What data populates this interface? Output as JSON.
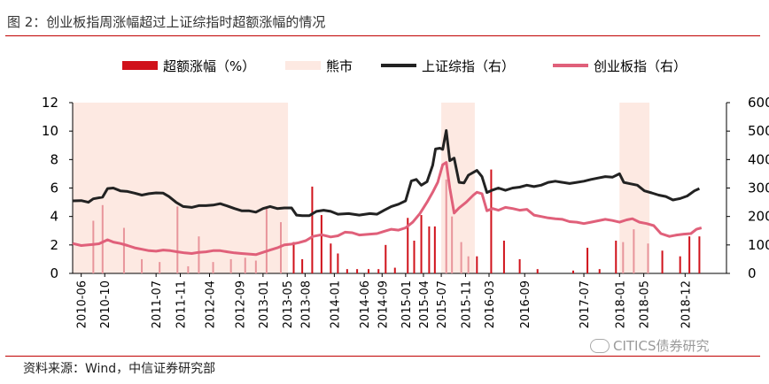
{
  "figure": {
    "title": "图 2：创业板指周涨幅超过上证综指时超额涨幅的情况",
    "source": "资料来源：Wind，中信证券研究部",
    "watermark": "CITICS债券研究"
  },
  "colors": {
    "excess": "#d0121b",
    "bear": "#fde9e2",
    "shanghai": "#222222",
    "chinext": "#e0607a",
    "rule": "#c00000"
  },
  "chart_data": {
    "type": "bar+line",
    "title": "图 2：创业板指周涨幅超过上证综指时超额涨幅的情况",
    "x_range": [
      2010.33,
      2019.5
    ],
    "y_left": {
      "range": [
        0,
        12
      ],
      "ticks": [
        0,
        2,
        4,
        6,
        8,
        10,
        12
      ]
    },
    "y_right": {
      "range": [
        0,
        600
      ],
      "ticks": [
        "0",
        "100",
        "200",
        "300",
        "400",
        "500",
        "600"
      ]
    },
    "x_ticks": [
      "2010-06",
      "2010-10",
      "2011-07",
      "2011-11",
      "2012-04",
      "2012-09",
      "2013-01",
      "2013-05",
      "2013-08",
      "2014-01",
      "2014-06",
      "2014-09",
      "2015-01",
      "2015-04",
      "2015-07",
      "2015-11",
      "2016-03",
      "2016-09",
      "2017-07",
      "2018-01",
      "2018-05",
      "2018-12"
    ],
    "x_tick_positions": [
      2010.45,
      2010.78,
      2011.5,
      2011.84,
      2012.25,
      2012.67,
      2013.0,
      2013.34,
      2013.59,
      2014.0,
      2014.42,
      2014.67,
      2015.0,
      2015.25,
      2015.5,
      2015.84,
      2016.17,
      2016.67,
      2017.5,
      2018.0,
      2018.34,
      2018.92
    ],
    "legend": [
      {
        "key": "excess",
        "label": "超额涨幅（%）"
      },
      {
        "key": "bear",
        "label": "熊市"
      },
      {
        "key": "shanghai",
        "label": "上证综指（右）"
      },
      {
        "key": "chinext",
        "label": "创业板指（右）"
      }
    ],
    "bear_periods": [
      [
        2010.33,
        2013.35
      ],
      [
        2015.5,
        2015.97
      ],
      [
        2018.0,
        2018.42
      ]
    ],
    "excess_bars": [
      {
        "x": 2010.62,
        "y": 3.7
      },
      {
        "x": 2010.75,
        "y": 4.8
      },
      {
        "x": 2011.05,
        "y": 3.2
      },
      {
        "x": 2011.3,
        "y": 1.0
      },
      {
        "x": 2011.55,
        "y": 0.8
      },
      {
        "x": 2011.8,
        "y": 4.7
      },
      {
        "x": 2011.95,
        "y": 0.5
      },
      {
        "x": 2012.1,
        "y": 2.6
      },
      {
        "x": 2012.3,
        "y": 0.8
      },
      {
        "x": 2012.55,
        "y": 1.0
      },
      {
        "x": 2012.75,
        "y": 1.1
      },
      {
        "x": 2012.9,
        "y": 0.9
      },
      {
        "x": 2013.05,
        "y": 4.6
      },
      {
        "x": 2013.25,
        "y": 3.6
      },
      {
        "x": 2013.43,
        "y": 2.2
      },
      {
        "x": 2013.55,
        "y": 1.0
      },
      {
        "x": 2013.69,
        "y": 6.1
      },
      {
        "x": 2013.82,
        "y": 4.1
      },
      {
        "x": 2013.95,
        "y": 2.1
      },
      {
        "x": 2014.05,
        "y": 1.4
      },
      {
        "x": 2014.18,
        "y": 0.3
      },
      {
        "x": 2014.32,
        "y": 0.3
      },
      {
        "x": 2014.48,
        "y": 0.3
      },
      {
        "x": 2014.62,
        "y": 0.3
      },
      {
        "x": 2014.72,
        "y": 2.0
      },
      {
        "x": 2014.85,
        "y": 0.4
      },
      {
        "x": 2015.03,
        "y": 3.9
      },
      {
        "x": 2015.12,
        "y": 2.3
      },
      {
        "x": 2015.22,
        "y": 4.1
      },
      {
        "x": 2015.33,
        "y": 3.3
      },
      {
        "x": 2015.41,
        "y": 3.3
      },
      {
        "x": 2015.57,
        "y": 6.6
      },
      {
        "x": 2015.65,
        "y": 4.0
      },
      {
        "x": 2015.78,
        "y": 2.2
      },
      {
        "x": 2015.88,
        "y": 1.2
      },
      {
        "x": 2016.0,
        "y": 1.2
      },
      {
        "x": 2016.2,
        "y": 7.3
      },
      {
        "x": 2016.38,
        "y": 2.3
      },
      {
        "x": 2016.6,
        "y": 1.0
      },
      {
        "x": 2016.85,
        "y": 0.3
      },
      {
        "x": 2017.35,
        "y": 0.2
      },
      {
        "x": 2017.55,
        "y": 1.8
      },
      {
        "x": 2017.72,
        "y": 0.3
      },
      {
        "x": 2017.95,
        "y": 2.3
      },
      {
        "x": 2018.05,
        "y": 2.2
      },
      {
        "x": 2018.2,
        "y": 3.1
      },
      {
        "x": 2018.4,
        "y": 2.1
      },
      {
        "x": 2018.6,
        "y": 1.6
      },
      {
        "x": 2018.85,
        "y": 1.2
      },
      {
        "x": 2018.98,
        "y": 2.6
      },
      {
        "x": 2019.12,
        "y": 2.6
      }
    ],
    "series": [
      {
        "name": "上证综指（右）",
        "key": "shanghai",
        "axis": "right",
        "points": [
          [
            2010.33,
            255
          ],
          [
            2010.45,
            256
          ],
          [
            2010.55,
            250
          ],
          [
            2010.62,
            262
          ],
          [
            2010.75,
            268
          ],
          [
            2010.82,
            298
          ],
          [
            2010.9,
            300
          ],
          [
            2011.0,
            290
          ],
          [
            2011.1,
            288
          ],
          [
            2011.2,
            282
          ],
          [
            2011.3,
            275
          ],
          [
            2011.4,
            280
          ],
          [
            2011.5,
            283
          ],
          [
            2011.6,
            282
          ],
          [
            2011.68,
            270
          ],
          [
            2011.78,
            250
          ],
          [
            2011.88,
            235
          ],
          [
            2012.0,
            232
          ],
          [
            2012.1,
            238
          ],
          [
            2012.2,
            238
          ],
          [
            2012.3,
            240
          ],
          [
            2012.4,
            245
          ],
          [
            2012.5,
            237
          ],
          [
            2012.6,
            228
          ],
          [
            2012.7,
            220
          ],
          [
            2012.8,
            220
          ],
          [
            2012.9,
            215
          ],
          [
            2013.0,
            228
          ],
          [
            2013.1,
            235
          ],
          [
            2013.2,
            228
          ],
          [
            2013.3,
            230
          ],
          [
            2013.4,
            230
          ],
          [
            2013.47,
            205
          ],
          [
            2013.55,
            203
          ],
          [
            2013.65,
            203
          ],
          [
            2013.75,
            218
          ],
          [
            2013.85,
            222
          ],
          [
            2013.95,
            218
          ],
          [
            2014.05,
            208
          ],
          [
            2014.2,
            210
          ],
          [
            2014.35,
            205
          ],
          [
            2014.5,
            210
          ],
          [
            2014.6,
            208
          ],
          [
            2014.7,
            222
          ],
          [
            2014.8,
            235
          ],
          [
            2014.9,
            243
          ],
          [
            2015.0,
            255
          ],
          [
            2015.08,
            325
          ],
          [
            2015.15,
            330
          ],
          [
            2015.22,
            310
          ],
          [
            2015.3,
            322
          ],
          [
            2015.38,
            380
          ],
          [
            2015.42,
            437
          ],
          [
            2015.48,
            440
          ],
          [
            2015.52,
            436
          ],
          [
            2015.57,
            502
          ],
          [
            2015.62,
            396
          ],
          [
            2015.68,
            405
          ],
          [
            2015.75,
            320
          ],
          [
            2015.82,
            318
          ],
          [
            2015.88,
            345
          ],
          [
            2015.95,
            355
          ],
          [
            2016.0,
            362
          ],
          [
            2016.07,
            340
          ],
          [
            2016.14,
            284
          ],
          [
            2016.22,
            293
          ],
          [
            2016.3,
            300
          ],
          [
            2016.4,
            292
          ],
          [
            2016.5,
            300
          ],
          [
            2016.6,
            303
          ],
          [
            2016.7,
            310
          ],
          [
            2016.8,
            305
          ],
          [
            2016.9,
            310
          ],
          [
            2017.0,
            320
          ],
          [
            2017.1,
            324
          ],
          [
            2017.2,
            320
          ],
          [
            2017.3,
            316
          ],
          [
            2017.4,
            320
          ],
          [
            2017.5,
            324
          ],
          [
            2017.6,
            330
          ],
          [
            2017.7,
            335
          ],
          [
            2017.8,
            340
          ],
          [
            2017.9,
            338
          ],
          [
            2018.0,
            350
          ],
          [
            2018.06,
            320
          ],
          [
            2018.15,
            315
          ],
          [
            2018.25,
            310
          ],
          [
            2018.35,
            290
          ],
          [
            2018.45,
            283
          ],
          [
            2018.55,
            275
          ],
          [
            2018.65,
            270
          ],
          [
            2018.75,
            258
          ],
          [
            2018.85,
            263
          ],
          [
            2018.95,
            272
          ],
          [
            2019.05,
            290
          ],
          [
            2019.12,
            298
          ]
        ]
      },
      {
        "name": "创业板指（右）",
        "key": "chinext",
        "axis": "right",
        "points": [
          [
            2010.33,
            105
          ],
          [
            2010.45,
            98
          ],
          [
            2010.55,
            100
          ],
          [
            2010.62,
            102
          ],
          [
            2010.7,
            104
          ],
          [
            2010.82,
            118
          ],
          [
            2010.9,
            110
          ],
          [
            2011.0,
            105
          ],
          [
            2011.1,
            98
          ],
          [
            2011.2,
            90
          ],
          [
            2011.3,
            85
          ],
          [
            2011.4,
            80
          ],
          [
            2011.5,
            78
          ],
          [
            2011.6,
            82
          ],
          [
            2011.7,
            80
          ],
          [
            2011.8,
            76
          ],
          [
            2011.9,
            72
          ],
          [
            2012.0,
            70
          ],
          [
            2012.1,
            74
          ],
          [
            2012.2,
            76
          ],
          [
            2012.3,
            80
          ],
          [
            2012.4,
            80
          ],
          [
            2012.5,
            76
          ],
          [
            2012.6,
            72
          ],
          [
            2012.7,
            70
          ],
          [
            2012.8,
            68
          ],
          [
            2012.9,
            66
          ],
          [
            2013.0,
            74
          ],
          [
            2013.1,
            82
          ],
          [
            2013.2,
            90
          ],
          [
            2013.3,
            100
          ],
          [
            2013.4,
            103
          ],
          [
            2013.5,
            108
          ],
          [
            2013.6,
            115
          ],
          [
            2013.7,
            130
          ],
          [
            2013.82,
            136
          ],
          [
            2013.95,
            128
          ],
          [
            2014.05,
            132
          ],
          [
            2014.15,
            145
          ],
          [
            2014.25,
            143
          ],
          [
            2014.35,
            135
          ],
          [
            2014.5,
            138
          ],
          [
            2014.6,
            140
          ],
          [
            2014.7,
            148
          ],
          [
            2014.8,
            155
          ],
          [
            2014.9,
            152
          ],
          [
            2015.0,
            160
          ],
          [
            2015.1,
            180
          ],
          [
            2015.2,
            210
          ],
          [
            2015.3,
            250
          ],
          [
            2015.38,
            285
          ],
          [
            2015.45,
            320
          ],
          [
            2015.52,
            382
          ],
          [
            2015.57,
            390
          ],
          [
            2015.62,
            300
          ],
          [
            2015.68,
            212
          ],
          [
            2015.75,
            230
          ],
          [
            2015.85,
            250
          ],
          [
            2015.95,
            275
          ],
          [
            2016.0,
            285
          ],
          [
            2016.07,
            280
          ],
          [
            2016.14,
            220
          ],
          [
            2016.22,
            228
          ],
          [
            2016.3,
            222
          ],
          [
            2016.4,
            232
          ],
          [
            2016.5,
            228
          ],
          [
            2016.6,
            222
          ],
          [
            2016.7,
            225
          ],
          [
            2016.8,
            205
          ],
          [
            2016.9,
            200
          ],
          [
            2017.0,
            195
          ],
          [
            2017.1,
            192
          ],
          [
            2017.2,
            190
          ],
          [
            2017.3,
            182
          ],
          [
            2017.4,
            180
          ],
          [
            2017.5,
            175
          ],
          [
            2017.6,
            180
          ],
          [
            2017.7,
            185
          ],
          [
            2017.8,
            190
          ],
          [
            2017.9,
            186
          ],
          [
            2018.0,
            180
          ],
          [
            2018.1,
            188
          ],
          [
            2018.18,
            192
          ],
          [
            2018.28,
            180
          ],
          [
            2018.38,
            175
          ],
          [
            2018.48,
            168
          ],
          [
            2018.58,
            140
          ],
          [
            2018.7,
            130
          ],
          [
            2018.8,
            135
          ],
          [
            2018.9,
            138
          ],
          [
            2019.0,
            140
          ],
          [
            2019.08,
            155
          ],
          [
            2019.15,
            160
          ]
        ]
      }
    ]
  }
}
